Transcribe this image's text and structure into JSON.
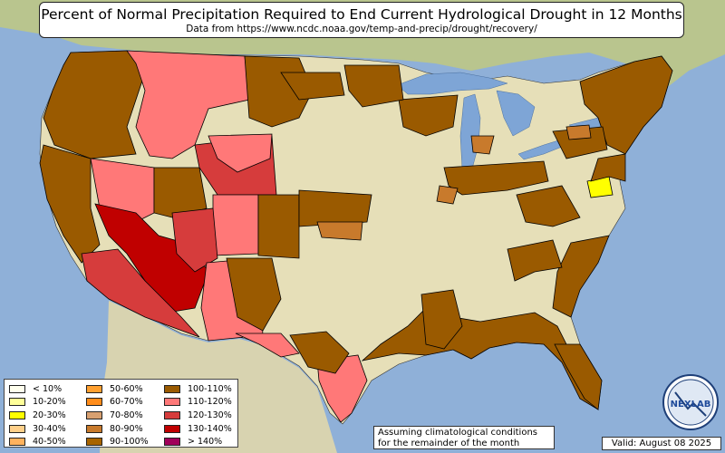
{
  "title": "Percent of Normal Precipitation Required to End Current Hydrological Drought in 12 Months",
  "subtitle": "Data from https://www.ncdc.noaa.gov/temp-and-precip/drought/recovery/",
  "note_line1": "Assuming climatological conditions",
  "note_line2": "for the remainder of the month",
  "valid": "Valid: August 08 2025",
  "logo_text": "NEXLAB",
  "colors": {
    "ocean": "#8fb0d8",
    "land_base": "#e8e2bc",
    "land_green": "#b8c994",
    "lake": "#7ea5d6",
    "border": "#000000"
  },
  "legend": {
    "col1": [
      {
        "label": "< 10%",
        "color": "#ffffee"
      },
      {
        "label": "10-20%",
        "color": "#ffff99"
      },
      {
        "label": "20-30%",
        "color": "#ffff00"
      },
      {
        "label": "30-40%",
        "color": "#ffd08a"
      },
      {
        "label": "40-50%",
        "color": "#ffb25e"
      }
    ],
    "col2": [
      {
        "label": "50-60%",
        "color": "#ffa030"
      },
      {
        "label": "60-70%",
        "color": "#ff8c1a"
      },
      {
        "label": "70-80%",
        "color": "#d8a070"
      },
      {
        "label": "80-90%",
        "color": "#c87a2c"
      },
      {
        "label": "90-100%",
        "color": "#a86400"
      }
    ],
    "col3": [
      {
        "label": "100-110%",
        "color": "#9a5a00"
      },
      {
        "label": "110-120%",
        "color": "#ff7878"
      },
      {
        "label": "120-130%",
        "color": "#d63c3c"
      },
      {
        "label": "130-140%",
        "color": "#c00000"
      },
      {
        "label": "> 140%",
        "color": "#a0005a"
      }
    ]
  }
}
